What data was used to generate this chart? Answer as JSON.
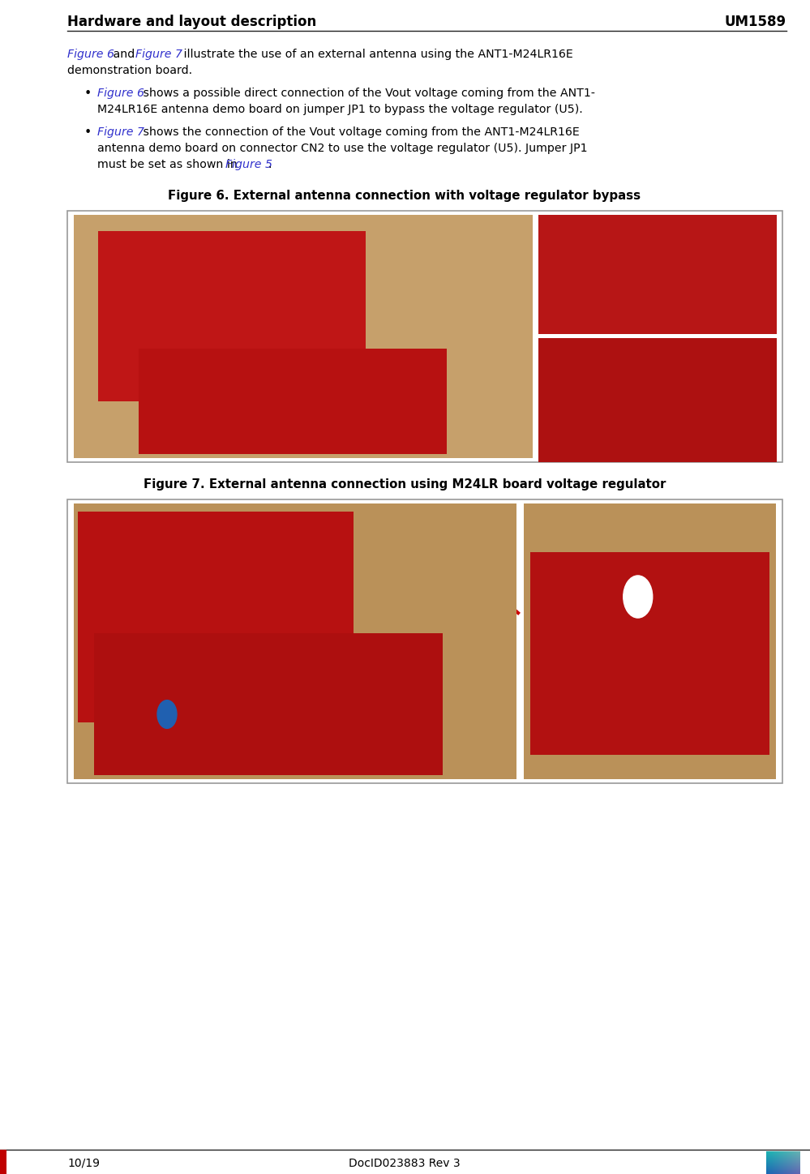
{
  "page_width": 9.99,
  "page_height": 14.48,
  "dpi": 100,
  "bg_color": "#ffffff",
  "header_text_left": "Hardware and layout description",
  "header_text_right": "UM1589",
  "header_font_size": 12,
  "footer_text_left": "10/19",
  "footer_text_center": "DocID023883 Rev 3",
  "footer_font_size": 10,
  "left_bar_color": "#c00000",
  "body_text_color": "#000000",
  "link_color": "#3030cc",
  "body_font_size": 10.2,
  "caption_font_size": 10.8,
  "separator_color": "#222222",
  "tan_bg": "#c8a472",
  "red_board": "#c01818",
  "dark_red": "#900000"
}
